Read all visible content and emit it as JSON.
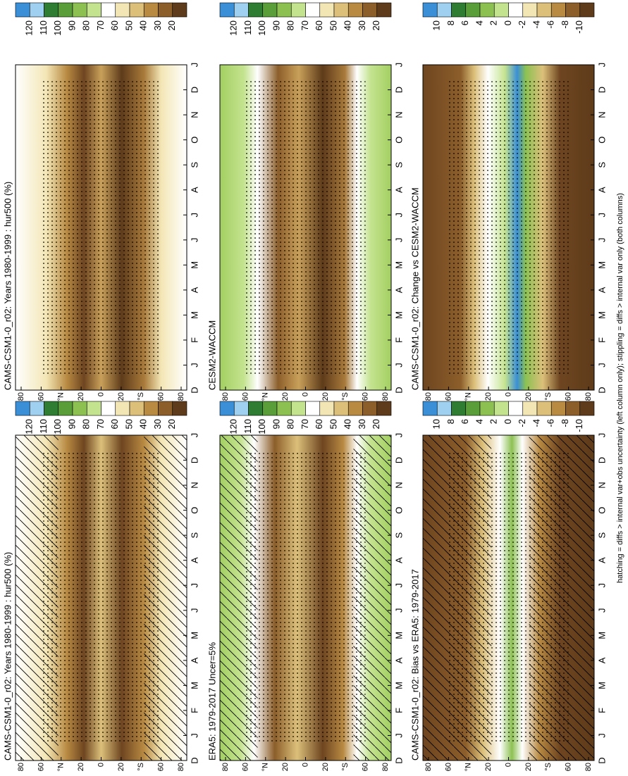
{
  "figure": {
    "footnote": "hatching = diffs > internal var+obs uncertainty (left column only); stippling = diffs > internal var only (both columns)",
    "months": [
      "D",
      "J",
      "F",
      "M",
      "A",
      "M",
      "J",
      "J",
      "A",
      "S",
      "O",
      "N",
      "D",
      "J"
    ],
    "latitudes": [
      "80",
      "60",
      "°N",
      "20",
      "0",
      "20",
      "°S",
      "60",
      "80"
    ],
    "colorbars": {
      "absolute": [
        "120",
        "110",
        "100",
        "90",
        "80",
        "70",
        "60",
        "50",
        "40",
        "30",
        "20"
      ],
      "difference": [
        "10",
        "8",
        "6",
        "4",
        "2",
        "0",
        "-2",
        "-4",
        "-6",
        "-8",
        "-10"
      ]
    },
    "panels": [
      {
        "title": "CAMS-CSM1-0_r02: Years 1980-1999 : hur500 (%)",
        "colorbar": "absolute"
      },
      {
        "title": "CAMS-CSM1-0_r02: Years 1980-1999 : hur500 (%)",
        "colorbar": "absolute"
      },
      {
        "title": "ERA5: 1979-2017 Uncer=5%",
        "colorbar": "absolute"
      },
      {
        "title": "CESM2-WACCM",
        "colorbar": "absolute"
      },
      {
        "title": "CAMS-CSM1-0_r02: Bias vs ERA5: 1979-2017",
        "colorbar": "difference"
      },
      {
        "title": "CAMS-CSM1-0_r02: Change vs CESM2-WACCM",
        "colorbar": "difference"
      }
    ]
  }
}
